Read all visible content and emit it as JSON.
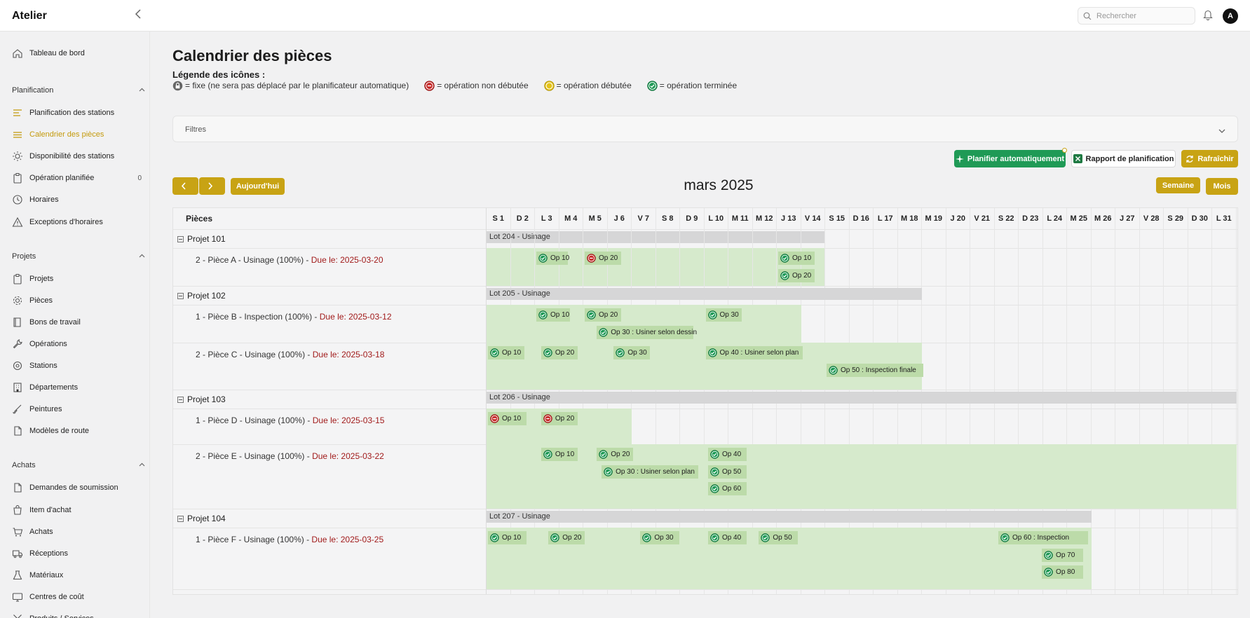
{
  "app": {
    "title": "Atelier",
    "search_placeholder": "Rechercher",
    "avatar": "A"
  },
  "sidebar": {
    "top": {
      "label": "Tableau de bord",
      "icon": "home-icon"
    },
    "sections": [
      {
        "title": "Planification",
        "items": [
          {
            "label": "Planification des stations",
            "icon": "bars-icon"
          },
          {
            "label": "Calendrier des pièces",
            "icon": "lines-icon",
            "active": true
          },
          {
            "label": "Disponibilité des stations",
            "icon": "sun-icon"
          },
          {
            "label": "Opération planifiée",
            "icon": "clipboard-icon",
            "count": "0"
          },
          {
            "label": "Horaires",
            "icon": "clock-icon"
          },
          {
            "label": "Exceptions d'horaires",
            "icon": "warning-icon"
          }
        ]
      },
      {
        "title": "Projets",
        "items": [
          {
            "label": "Projets",
            "icon": "clipboard-icon"
          },
          {
            "label": "Pièces",
            "icon": "gear-icon"
          },
          {
            "label": "Bons de travail",
            "icon": "book-icon"
          },
          {
            "label": "Opérations",
            "icon": "wrench-icon"
          },
          {
            "label": "Stations",
            "icon": "station-icon"
          },
          {
            "label": "Départements",
            "icon": "building-icon"
          },
          {
            "label": "Peintures",
            "icon": "brush-icon"
          },
          {
            "label": "Modèles de route",
            "icon": "file-icon"
          }
        ]
      },
      {
        "title": "Achats",
        "items": [
          {
            "label": "Demandes de soumission",
            "icon": "file-icon"
          },
          {
            "label": "Item d'achat",
            "icon": "bag-icon"
          },
          {
            "label": "Achats",
            "icon": "cart-icon"
          },
          {
            "label": "Réceptions",
            "icon": "truck-icon"
          },
          {
            "label": "Matériaux",
            "icon": "flask-icon"
          },
          {
            "label": "Centres de coût",
            "icon": "monitor-icon"
          },
          {
            "label": "Produits / Services",
            "icon": "tools-icon"
          }
        ]
      }
    ]
  },
  "page": {
    "title": "Calendrier des pièces",
    "legend_title": "Légende des icônes :",
    "legend": [
      {
        "icon": "lock-icon",
        "text": "= fixe (ne sera pas déplacé par le planificateur automatique)"
      },
      {
        "icon": "not-started-icon",
        "text": "= opération non débutée"
      },
      {
        "icon": "started-icon",
        "text": "= opération débutée"
      },
      {
        "icon": "done-icon",
        "text": "= opération terminée"
      }
    ],
    "filters_label": "Filtres",
    "buttons": {
      "auto": "Planifier automatiquement",
      "auto_badge": "0",
      "report": "Rapport de planification",
      "refresh": "Rafraîchir",
      "today": "Aujourd'hui",
      "week": "Semaine",
      "month": "Mois"
    },
    "month_label": "mars 2025",
    "pieces_header": "Pièces",
    "days": [
      "S 1",
      "D 2",
      "L 3",
      "M 4",
      "M 5",
      "J 6",
      "V 7",
      "S 8",
      "D 9",
      "L 10",
      "M 11",
      "M 12",
      "J 13",
      "V 14",
      "S 15",
      "D 16",
      "L 17",
      "M 18",
      "M 19",
      "J 20",
      "V 21",
      "S 22",
      "D 23",
      "L 24",
      "M 25",
      "M 26",
      "J 27",
      "V 28",
      "S 29",
      "D 30",
      "L 31"
    ],
    "due_prefix": "Due le:",
    "projects": [
      {
        "name": "Projet 101",
        "lot": "Lot 204 - Usinage",
        "lot_span": [
          1,
          14
        ],
        "pieces": [
          {
            "label": "2 - Pièce A - Usinage (100%) - ",
            "due": "Due le: 2025-03-20",
            "span": [
              1,
              14
            ],
            "rows": 2,
            "ops": [
              {
                "label": "Op 10",
                "status": "done",
                "start": 3,
                "width": 1.3,
                "row": 0
              },
              {
                "label": "Op 20",
                "status": "not-started",
                "start": 5,
                "width": 1.5,
                "row": 0
              },
              {
                "label": "Op 10",
                "status": "done",
                "start": 13,
                "width": 1.5,
                "row": 0
              },
              {
                "label": "Op 20",
                "status": "done",
                "start": 13,
                "width": 1.5,
                "row": 1
              }
            ]
          }
        ]
      },
      {
        "name": "Projet 102",
        "lot": "Lot 205 - Usinage",
        "lot_span": [
          1,
          18
        ],
        "pieces": [
          {
            "label": "1 - Pièce B - Inspection (100%) - ",
            "due": "Due le: 2025-03-12",
            "span": [
              1,
              13
            ],
            "rows": 2,
            "ops": [
              {
                "label": "Op 10",
                "status": "done",
                "start": 3,
                "width": 1.4,
                "row": 0
              },
              {
                "label": "Op 20",
                "status": "done",
                "start": 5,
                "width": 1.5,
                "row": 0
              },
              {
                "label": "Op 30",
                "status": "done",
                "start": 10,
                "width": 1.5,
                "row": 0
              },
              {
                "label": "Op 30 : Usiner selon dessin",
                "status": "done",
                "start": 5.5,
                "width": 4,
                "row": 1
              }
            ]
          },
          {
            "label": "2 - Pièce C - Usinage (100%) - ",
            "due": "Due le: 2025-03-18",
            "span": [
              1,
              18
            ],
            "rows": 2,
            "ops": [
              {
                "label": "Op 10",
                "status": "done",
                "start": 1,
                "width": 1.5,
                "row": 0
              },
              {
                "label": "Op 20",
                "status": "done",
                "start": 3.2,
                "width": 1.5,
                "row": 0
              },
              {
                "label": "Op 30",
                "status": "done",
                "start": 6.2,
                "width": 1.5,
                "row": 0
              },
              {
                "label": "Op 40 : Usiner selon plan",
                "status": "done",
                "start": 10,
                "width": 4,
                "row": 0
              },
              {
                "label": "Op 50 : Inspection finale",
                "status": "done",
                "start": 15,
                "width": 4,
                "row": 1
              }
            ]
          }
        ]
      },
      {
        "name": "Projet 103",
        "lot": "Lot 206 - Usinage",
        "lot_span": [
          1,
          31
        ],
        "pieces": [
          {
            "label": "1 - Pièce D - Usinage (100%) - ",
            "due": "Due le: 2025-03-15",
            "span": [
              1,
              6
            ],
            "rows": 1,
            "ops": [
              {
                "label": "Op 10",
                "status": "not-started",
                "start": 1,
                "width": 1.6,
                "row": 0
              },
              {
                "label": "Op 20",
                "status": "not-started",
                "start": 3.2,
                "width": 1.5,
                "row": 0
              }
            ]
          },
          {
            "label": "2 - Pièce E - Usinage (100%) - ",
            "due": "Due le: 2025-03-22",
            "span": [
              1,
              31
            ],
            "rows": 3,
            "ops": [
              {
                "label": "Op 10",
                "status": "done",
                "start": 3.2,
                "width": 1.5,
                "row": 0
              },
              {
                "label": "Op 20",
                "status": "done",
                "start": 5.5,
                "width": 1.5,
                "row": 0
              },
              {
                "label": "Op 40",
                "status": "done",
                "start": 10.1,
                "width": 1.6,
                "row": 0
              },
              {
                "label": "Op 30 : Usiner selon plan",
                "status": "done",
                "start": 5.7,
                "width": 4,
                "row": 1
              },
              {
                "label": "Op 50",
                "status": "done",
                "start": 10.1,
                "width": 1.6,
                "row": 1
              },
              {
                "label": "Op 60",
                "status": "done",
                "start": 10.1,
                "width": 1.6,
                "row": 2
              }
            ]
          }
        ]
      },
      {
        "name": "Projet 104",
        "lot": "Lot 207 - Usinage",
        "lot_span": [
          1,
          25
        ],
        "pieces": [
          {
            "label": "1 - Pièce F - Usinage (100%) - ",
            "due": "Due le: 2025-03-25",
            "span": [
              1,
              25
            ],
            "rows": 3,
            "ops": [
              {
                "label": "Op 10",
                "status": "done",
                "start": 1,
                "width": 1.6,
                "row": 0
              },
              {
                "label": "Op 20",
                "status": "done",
                "start": 3.5,
                "width": 1.5,
                "row": 0
              },
              {
                "label": "Op 30",
                "status": "done",
                "start": 7.3,
                "width": 1.6,
                "row": 0
              },
              {
                "label": "Op 40",
                "status": "done",
                "start": 10.1,
                "width": 1.6,
                "row": 0
              },
              {
                "label": "Op 50",
                "status": "done",
                "start": 12.2,
                "width": 1.6,
                "row": 0
              },
              {
                "label": "Op 60 : Inspection",
                "status": "done",
                "start": 22.1,
                "width": 3.7,
                "row": 0
              },
              {
                "label": "Op 70",
                "status": "done",
                "start": 23.9,
                "width": 1.7,
                "row": 1
              },
              {
                "label": "Op 80",
                "status": "done",
                "start": 23.9,
                "width": 1.7,
                "row": 2
              }
            ]
          }
        ]
      }
    ]
  },
  "colors": {
    "accent": "#c8a314",
    "done": "#1f9a56",
    "not_started": "#c62828",
    "started": "#d4b400",
    "gantt_bg": "#d6eacc",
    "chip": "#bcdba9"
  }
}
